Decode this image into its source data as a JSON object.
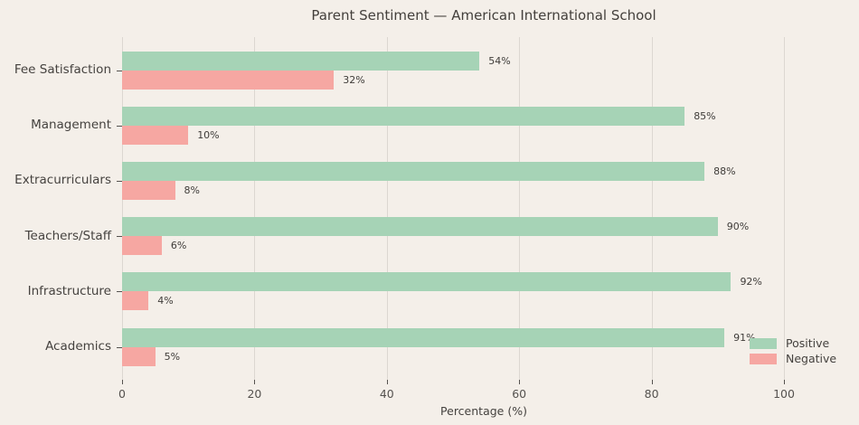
{
  "chart_data": {
    "type": "bar",
    "orientation": "horizontal",
    "title": "Parent Sentiment — American International School",
    "xlabel": "Percentage (%)",
    "categories": [
      "Fee Satisfaction",
      "Management",
      "Extracurriculars",
      "Teachers/Staff",
      "Infrastructure",
      "Academics"
    ],
    "series": [
      {
        "name": "Positive",
        "color": "#a6d3b6",
        "values": [
          54,
          85,
          88,
          90,
          92,
          91
        ]
      },
      {
        "name": "Negative",
        "color": "#f6a7a2",
        "values": [
          32,
          10,
          8,
          6,
          4,
          5
        ]
      }
    ],
    "value_labels": {
      "Positive": [
        "54%",
        "85%",
        "88%",
        "90%",
        "92%",
        "91%"
      ],
      "Negative": [
        "32%",
        "10%",
        "8%",
        "6%",
        "4%",
        "5%"
      ]
    },
    "x_ticks": [
      "0",
      "20",
      "40",
      "60",
      "80",
      "100"
    ],
    "x_tick_values": [
      0,
      20,
      40,
      60,
      80,
      100
    ],
    "xlim": [
      0,
      109.3
    ],
    "grid": true,
    "legend_position": "lower right"
  },
  "style": {
    "background": "#f4efe9",
    "grid_color": "#dcd7d1",
    "positive_color": "#a6d3b6",
    "negative_color": "#f6a7a2",
    "text_color": "#45423f"
  }
}
